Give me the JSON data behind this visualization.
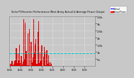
{
  "title": "Solar PV/Inverter Performance West Array Actual & Average Power Output",
  "bg_color": "#c8c8c8",
  "plot_bg_color": "#c8c8c8",
  "bar_color": "#dd0000",
  "avg_line_color": "#00cccc",
  "ylim": [
    0,
    3500
  ],
  "yticks": [
    500,
    1000,
    1500,
    2000,
    2500,
    3000,
    3500
  ],
  "ytick_labels": [
    "5h",
    "1k",
    "1.5k",
    "2k",
    "2.5k",
    "3k",
    "3.5k"
  ],
  "legend_actual_color": "#ff0000",
  "legend_avg_color": "#0000ff",
  "n_weeks": 104,
  "noise_seed": 7,
  "avg_level": 900
}
